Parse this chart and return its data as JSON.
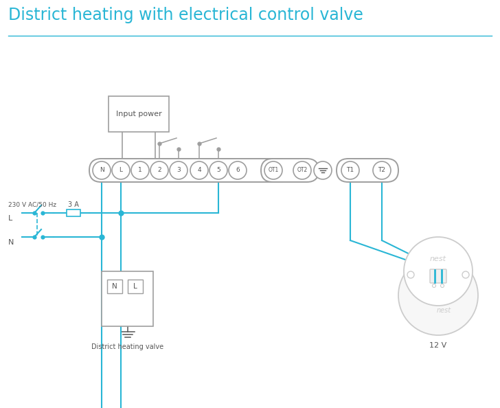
{
  "title": "District heating with electrical control valve",
  "title_color": "#29b6d5",
  "title_fontsize": 17,
  "bg_color": "#ffffff",
  "lc": "#29b6d5",
  "gc": "#9e9e9e",
  "dgc": "#555555",
  "lgc": "#cccccc",
  "terminal_labels": [
    "N",
    "L",
    "1",
    "2",
    "3",
    "4",
    "5",
    "6"
  ],
  "ot_labels": [
    "OT1",
    "OT2"
  ],
  "t_labels": [
    "T1",
    "T2"
  ],
  "label_230v": "230 V AC/50 Hz",
  "label_L": "L",
  "label_N": "N",
  "label_3A": "3 A",
  "label_input_power": "Input power",
  "label_district": "District heating valve",
  "label_12v": "12 V",
  "label_NL_N": "N",
  "label_NL_L": "L"
}
